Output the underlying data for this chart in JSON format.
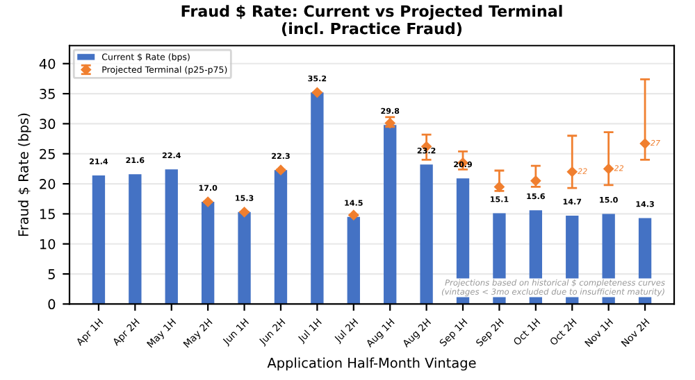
{
  "chart_data": {
    "type": "bar",
    "title": "Fraud $ Rate: Current vs Projected Terminal\n(incl. Practice Fraud)",
    "xlabel": "Application Half-Month Vintage",
    "ylabel": "Fraud $ Rate (bps)",
    "categories": [
      "Apr 1H",
      "Apr 2H",
      "May 1H",
      "May 2H",
      "Jun 1H",
      "Jun 2H",
      "Jul 1H",
      "Jul 2H",
      "Aug 1H",
      "Aug 2H",
      "Sep 1H",
      "Sep 2H",
      "Oct 1H",
      "Oct 2H",
      "Nov 1H",
      "Nov 2H"
    ],
    "series": [
      {
        "name": "Current $ Rate (bps)",
        "color": "#4472c4",
        "values": [
          21.4,
          21.6,
          22.4,
          17.0,
          15.3,
          22.3,
          35.2,
          14.5,
          29.8,
          23.2,
          20.9,
          15.1,
          15.6,
          14.7,
          15.0,
          14.3
        ],
        "value_labels": [
          "21.4",
          "21.6",
          "22.4",
          "17.0",
          "15.3",
          "22.3",
          "35.2",
          "14.5",
          "29.8",
          "23.2",
          "20.9",
          "15.1",
          "15.6",
          "14.7",
          "15.0",
          "14.3"
        ]
      },
      {
        "name": "Projected Terminal (p25-p75)",
        "type": "scatter",
        "color": "#f07f2f",
        "marker": "diamond",
        "values": [
          null,
          null,
          null,
          17.0,
          15.3,
          22.3,
          35.2,
          14.8,
          30.1,
          26.2,
          23.5,
          19.5,
          20.5,
          22.0,
          22.5,
          26.7
        ],
        "errors": [
          null,
          null,
          null,
          null,
          null,
          null,
          null,
          null,
          [
            29.5,
            31.1
          ],
          [
            24.0,
            28.2
          ],
          [
            22.4,
            25.4
          ],
          [
            18.8,
            22.2
          ],
          [
            19.5,
            23.0
          ],
          [
            19.3,
            28.0
          ],
          [
            19.8,
            28.6
          ],
          [
            24.0,
            37.4
          ]
        ],
        "value_labels": [
          null,
          null,
          null,
          null,
          null,
          null,
          null,
          null,
          null,
          null,
          null,
          null,
          null,
          "22",
          "22",
          "27"
        ]
      }
    ],
    "ylim": [
      0,
      43
    ],
    "yticks": [
      0,
      5,
      10,
      15,
      20,
      25,
      30,
      35,
      40
    ],
    "grid": "y",
    "legend": "top left",
    "annotations": [
      "Projections based on historical $ completeness curves\n(vintages < 3mo excluded due to insufficient maturity)"
    ]
  }
}
